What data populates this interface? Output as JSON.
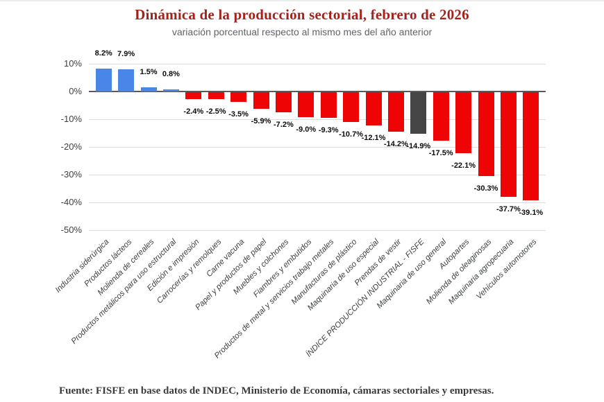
{
  "header": {
    "title": "Dinámica de la producción sectorial, febrero de 2026",
    "subtitle": "variación porcentual respecto al mismo mes del  año anterior"
  },
  "footer": {
    "source": "Fuente: FISFE en base datos de INDEC, Ministerio de Economía, cámaras sectoriales y empresas."
  },
  "chart_data": {
    "type": "bar",
    "title": "Dinámica de la producción sectorial, febrero de 2026",
    "subtitle": "variación porcentual respecto al mismo mes del  año anterior",
    "categories": [
      "Industria siderúrgica",
      "Productos lácteos",
      "Molienda de cereales",
      "Productos metálicos para uso estructural",
      "Edición e impresión",
      "Carrocerías y remolques",
      "Carne vacuna",
      "Papel y productos de papel",
      "Muebles y colchones",
      "Fiambres y embutidos",
      "Productos de metal y servicios trabajo metales",
      "Manufacturas de plástico",
      "Maquinaria de uso especial",
      "Prendas de vestir",
      "ÍNDICE PRODUCCIÓN INDUSTRIAL - FISFE",
      "Maquinaria de uso general",
      "Autopartes",
      "Molienda de oleaginosas",
      "Maquinaria agropecuaria",
      "Vehículos automotores"
    ],
    "values": [
      8.2,
      7.9,
      1.5,
      0.8,
      -2.4,
      -2.5,
      -3.5,
      -5.9,
      -7.2,
      -9.0,
      -9.3,
      -10.7,
      -12.1,
      -14.2,
      -14.9,
      -17.5,
      -22.1,
      -30.3,
      -37.7,
      -39.1
    ],
    "value_labels": [
      "8.2%",
      "7.9%",
      "1.5%",
      "0.8%",
      "-2.4%",
      "-2.5%",
      "-3.5%",
      "-5.9%",
      "-7.2%",
      "-9.0%",
      "-9.3%",
      "-10.7%",
      "-12.1%",
      "-14.2%",
      "-14.9%",
      "-17.5%",
      "-22.1%",
      "-30.3%",
      "-37.7%",
      "-39.1%"
    ],
    "xlabel": "",
    "ylabel": "",
    "ylim": [
      -50,
      10
    ],
    "y_ticks": [
      "10%",
      "0%",
      "-10%",
      "-20%",
      "-30%",
      "-40%",
      "-50%"
    ],
    "grid": true,
    "legend": "none",
    "index_category": "ÍNDICE PRODUCCIÓN INDUSTRIAL - FISFE",
    "colors": {
      "positive": "#4a86e8",
      "negative": "#ee0404",
      "index": "#454545"
    }
  }
}
